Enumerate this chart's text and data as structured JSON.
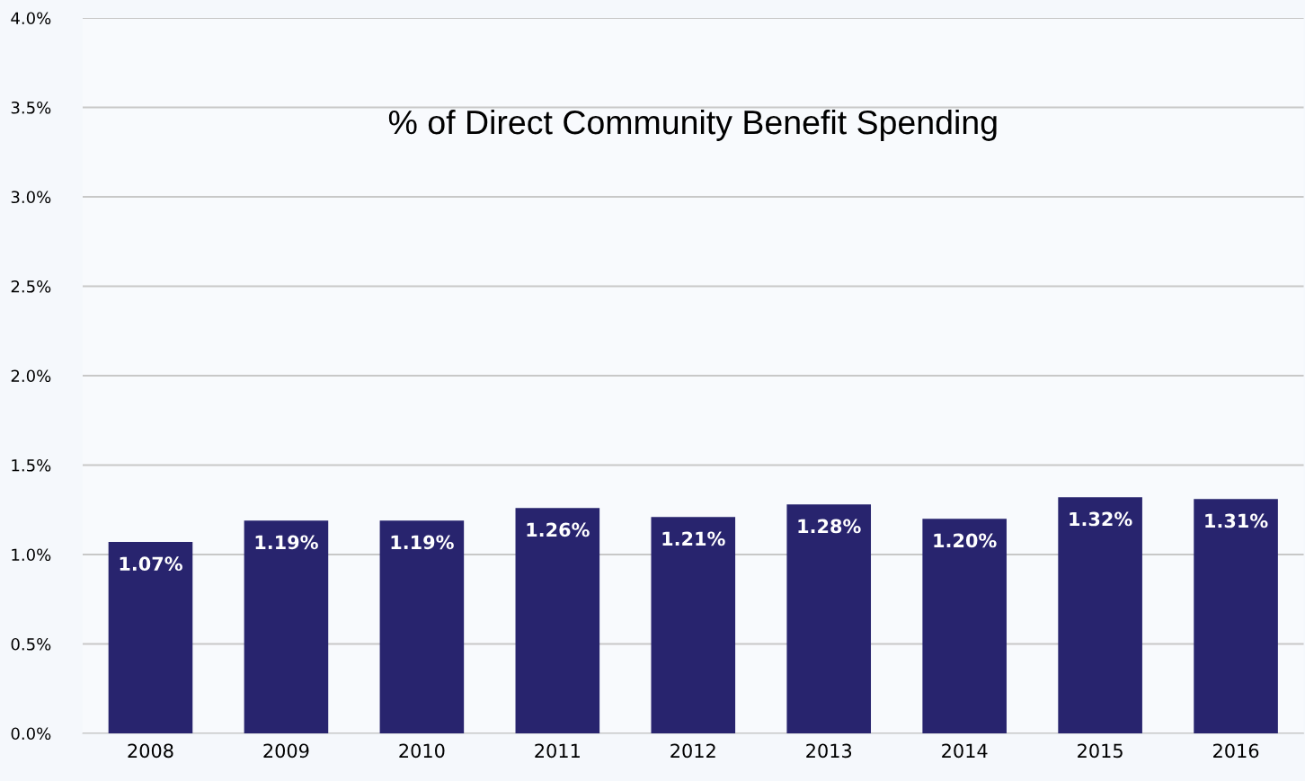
{
  "chart_data": {
    "type": "bar",
    "title": "% of Direct Community Benefit Spending",
    "categories": [
      "2008",
      "2009",
      "2010",
      "2011",
      "2012",
      "2013",
      "2014",
      "2015",
      "2016"
    ],
    "values": [
      1.07,
      1.19,
      1.19,
      1.26,
      1.21,
      1.28,
      1.2,
      1.32,
      1.31
    ],
    "value_labels": [
      "1.07%",
      "1.19%",
      "1.19%",
      "1.26%",
      "1.21%",
      "1.28%",
      "1.20%",
      "1.32%",
      "1.31%"
    ],
    "color": "#28246e",
    "ylim": [
      0,
      4
    ],
    "yticks": [
      {
        "value": 0,
        "label": "0.0%"
      },
      {
        "value": 0.5,
        "label": "0.5%"
      },
      {
        "value": 1,
        "label": "1.0%"
      },
      {
        "value": 1.5,
        "label": "1.5%"
      },
      {
        "value": 2,
        "label": "2.0%"
      },
      {
        "value": 2.5,
        "label": "2.5%"
      },
      {
        "value": 3,
        "label": "3.0%"
      },
      {
        "value": 3.5,
        "label": "3.5%"
      },
      {
        "value": 4,
        "label": "4.0%"
      }
    ],
    "grid": "y",
    "legend": false
  }
}
